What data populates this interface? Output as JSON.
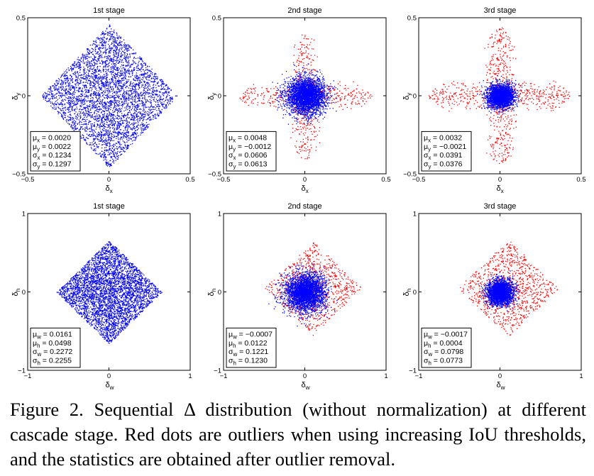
{
  "caption": "Figure 2. Sequential Δ distribution (without normalization) at different cascade stage. Red dots are outliers when using increasing IoU thresholds, and the statistics are obtained after outlier removal.",
  "colors": {
    "inlier": "#0000ff",
    "outlier": "#ff0000"
  },
  "chart_data": [
    {
      "type": "scatter",
      "title": "1st stage",
      "xlabel": "δx",
      "ylabel": "δy",
      "xlim": [
        -0.5,
        0.5
      ],
      "ylim": [
        -0.5,
        0.5
      ],
      "xticks": [
        "−0.5",
        "0",
        "0.5"
      ],
      "yticks": [
        "0.5",
        "0",
        "−0.5"
      ],
      "legend_placement": "bottom-left",
      "stats": [
        "μx = 0.0020",
        "μy = 0.0022",
        "σx = 0.1234",
        "σy = 0.1297"
      ],
      "series": [
        {
          "name": "inliers",
          "color": "#0000ff",
          "distribution": "diamond",
          "count": 4200,
          "center": [
            0.0,
            0.0
          ],
          "half_width": [
            0.42,
            0.46
          ]
        }
      ]
    },
    {
      "type": "scatter",
      "title": "2nd stage",
      "xlabel": "δx",
      "ylabel": "δy",
      "xlim": [
        -0.5,
        0.5
      ],
      "ylim": [
        -0.5,
        0.5
      ],
      "xticks": [
        "−0.5",
        "0",
        "0.5"
      ],
      "yticks": [
        "0.5",
        "0",
        "−0.5"
      ],
      "legend_placement": "bottom-left",
      "stats": [
        "μx = 0.0048",
        "μy = −0.0012",
        "σx = 0.0606",
        "σy = 0.0613"
      ],
      "series": [
        {
          "name": "outliers",
          "color": "#ff0000",
          "distribution": "cross",
          "count": 650,
          "center": [
            0.0,
            0.0
          ],
          "half_width": [
            0.42,
            0.42
          ]
        },
        {
          "name": "inliers",
          "color": "#0000ff",
          "distribution": "core",
          "count": 3200,
          "center": [
            0.005,
            0.0
          ],
          "sigma": [
            0.06,
            0.06
          ]
        }
      ]
    },
    {
      "type": "scatter",
      "title": "3rd stage",
      "xlabel": "δx",
      "ylabel": "δy",
      "xlim": [
        -0.5,
        0.5
      ],
      "ylim": [
        -0.5,
        0.5
      ],
      "xticks": [
        "−0.5",
        "0",
        "0.5"
      ],
      "yticks": [
        "0.5",
        "0",
        "−0.5"
      ],
      "legend_placement": "bottom-left",
      "stats": [
        "μx = 0.0032",
        "μy = −0.0021",
        "σx = 0.0391",
        "σy = 0.0376"
      ],
      "series": [
        {
          "name": "outliers",
          "color": "#ff0000",
          "distribution": "cross",
          "count": 900,
          "center": [
            0.0,
            0.0
          ],
          "half_width": [
            0.45,
            0.45
          ]
        },
        {
          "name": "inliers",
          "color": "#0000ff",
          "distribution": "core",
          "count": 2600,
          "center": [
            0.003,
            0.0
          ],
          "sigma": [
            0.04,
            0.038
          ]
        }
      ]
    },
    {
      "type": "scatter",
      "title": "1st stage",
      "xlabel": "δw",
      "ylabel": "δh",
      "xlim": [
        -1,
        1
      ],
      "ylim": [
        -1,
        1
      ],
      "xticks": [
        "−1",
        "0",
        "1"
      ],
      "yticks": [
        "1",
        "0",
        "−1"
      ],
      "legend_placement": "bottom-left",
      "stats": [
        "μw = 0.0161",
        "μh = 0.0498",
        "σw = 0.2272",
        "σh = 0.2255"
      ],
      "series": [
        {
          "name": "inliers",
          "color": "#0000ff",
          "distribution": "diamond",
          "count": 4200,
          "center": [
            0.0,
            0.0
          ],
          "half_width": [
            0.65,
            0.66
          ]
        }
      ]
    },
    {
      "type": "scatter",
      "title": "2nd stage",
      "xlabel": "δw",
      "ylabel": "δh",
      "xlim": [
        -1,
        1
      ],
      "ylim": [
        -1,
        1
      ],
      "xticks": [
        "−1",
        "0",
        "1"
      ],
      "yticks": [
        "1",
        "0",
        "−1"
      ],
      "legend_placement": "bottom-left",
      "stats": [
        "μw = −0.0007",
        "μh = 0.0122",
        "σw = 0.1221",
        "σh = 0.1230"
      ],
      "series": [
        {
          "name": "outliers",
          "color": "#ff0000",
          "distribution": "diamond",
          "count": 850,
          "center": [
            0.1,
            0.05
          ],
          "half_width": [
            0.6,
            0.6
          ]
        },
        {
          "name": "inliers",
          "color": "#0000ff",
          "distribution": "core",
          "count": 3200,
          "center": [
            0.0,
            0.0
          ],
          "sigma": [
            0.12,
            0.12
          ]
        }
      ]
    },
    {
      "type": "scatter",
      "title": "3rd stage",
      "xlabel": "δw",
      "ylabel": "δh",
      "xlim": [
        -1,
        1
      ],
      "ylim": [
        -1,
        1
      ],
      "xticks": [
        "−1",
        "0",
        "1"
      ],
      "yticks": [
        "1",
        "0",
        "−1"
      ],
      "legend_placement": "bottom-left",
      "stats": [
        "μw = −0.0017",
        "μh = 0.0004",
        "σw = 0.0798",
        "σh = 0.0773"
      ],
      "series": [
        {
          "name": "outliers",
          "color": "#ff0000",
          "distribution": "diamond",
          "count": 1000,
          "center": [
            0.1,
            0.05
          ],
          "half_width": [
            0.62,
            0.62
          ]
        },
        {
          "name": "inliers",
          "color": "#0000ff",
          "distribution": "core",
          "count": 2600,
          "center": [
            0.0,
            0.0
          ],
          "sigma": [
            0.08,
            0.078
          ]
        }
      ]
    }
  ]
}
